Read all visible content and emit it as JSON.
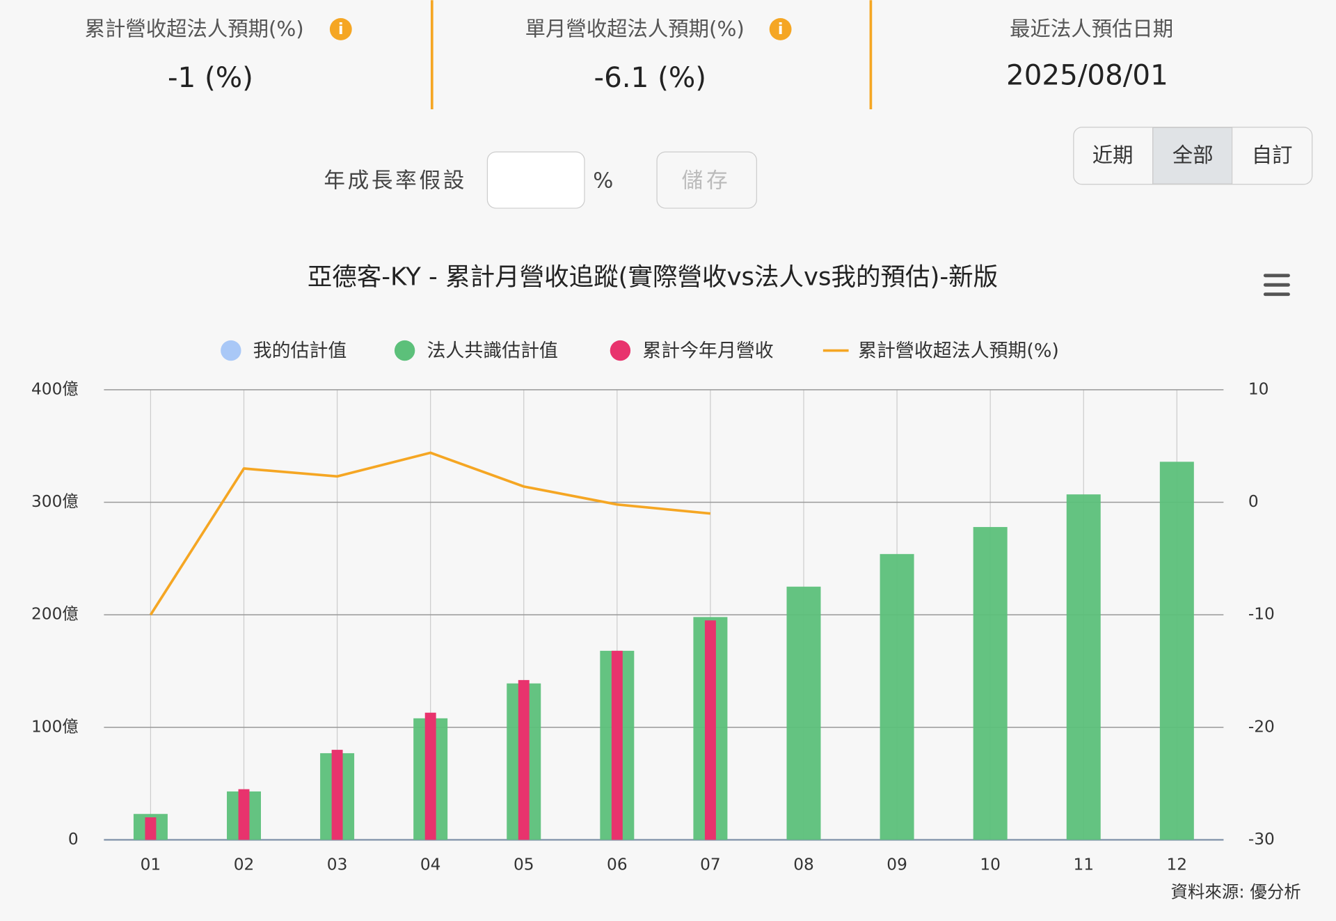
{
  "kpis": [
    {
      "label": "累計營收超法人預期(%)",
      "value": "-1 (%)"
    },
    {
      "label": "單月營收超法人預期(%)",
      "value": "-6.1 (%)"
    },
    {
      "label": "最近法人預估日期",
      "value": "2025/08/01"
    }
  ],
  "form": {
    "label": "年成長率假設",
    "unit": "%",
    "button": "儲存"
  },
  "range_buttons": [
    "近期",
    "全部",
    "自訂"
  ],
  "chart_data": {
    "type": "bar_line",
    "title": "亞德客-KY - 累計月營收追蹤(實際營收vs法人vs我的預估)-新版",
    "categories": [
      "01",
      "02",
      "03",
      "04",
      "05",
      "06",
      "07",
      "08",
      "09",
      "10",
      "11",
      "12"
    ],
    "series": [
      {
        "name": "我的估計值",
        "type": "bar",
        "color": "#a9c8f7",
        "values": [
          null,
          null,
          null,
          null,
          null,
          null,
          null,
          null,
          null,
          null,
          null,
          null
        ]
      },
      {
        "name": "法人共識估計值",
        "type": "bar",
        "color": "#5cc07a",
        "values": [
          23,
          43,
          77,
          108,
          139,
          168,
          198,
          225,
          254,
          278,
          307,
          336
        ]
      },
      {
        "name": "累計今年月營收",
        "type": "bar",
        "color": "#e8336d",
        "values": [
          20,
          45,
          80,
          113,
          142,
          168,
          195,
          null,
          null,
          null,
          null,
          null
        ]
      },
      {
        "name": "累計營收超法人預期(%)",
        "type": "line",
        "axis": "y2",
        "color": "#f5a623",
        "values": [
          -10,
          3.0,
          2.3,
          4.4,
          1.4,
          -0.2,
          -1.0,
          null,
          null,
          null,
          null,
          null
        ]
      }
    ],
    "ylim": [
      0,
      400
    ],
    "yticks": [
      0,
      {
        "value": 100,
        "label": "100億"
      },
      {
        "value": 200,
        "label": "200億"
      },
      {
        "value": 300,
        "label": "300億"
      },
      {
        "value": 400,
        "label": "400億"
      }
    ],
    "y2lim": [
      -30,
      10
    ],
    "y2ticks": [
      -30,
      -20,
      -10,
      0,
      10
    ],
    "grid": true,
    "source": "資料來源: 優分析"
  }
}
